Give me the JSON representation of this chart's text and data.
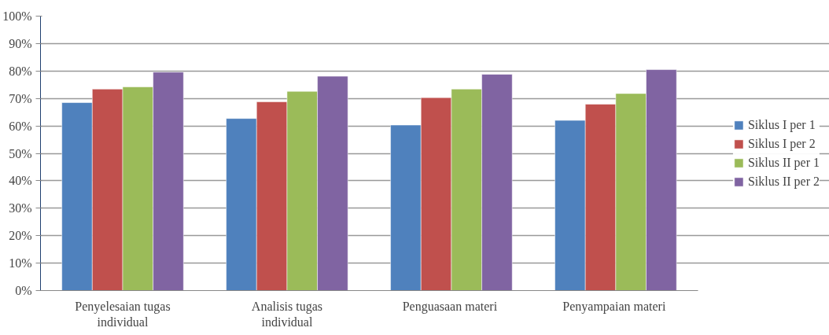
{
  "chart_data": {
    "type": "bar",
    "categories": [
      "Penyelesaian tugas individual",
      "Analisis tugas individual",
      "Penguasaan  materi",
      "Penyampaian  materi"
    ],
    "series": [
      {
        "name": "Siklus I per 1",
        "color": "#4f81bd",
        "values": [
          68.5,
          62.7,
          60.3,
          62
        ]
      },
      {
        "name": "Siklus I per 2",
        "color": "#c0504d",
        "values": [
          73.4,
          68.8,
          70.3,
          67.9
        ]
      },
      {
        "name": "Siklus II per 1",
        "color": "#9bbb59",
        "values": [
          74.2,
          72.6,
          73.4,
          71.8
        ]
      },
      {
        "name": "Siklus II per 2",
        "color": "#8064a2",
        "values": [
          79.6,
          78.1,
          78.8,
          80.5
        ]
      }
    ],
    "ylim": [
      0,
      100
    ],
    "yticks": [
      {
        "value": 0,
        "label": "0%"
      },
      {
        "value": 10,
        "label": "10%"
      },
      {
        "value": 20,
        "label": "20%"
      },
      {
        "value": 30,
        "label": "30%"
      },
      {
        "value": 40,
        "label": "40%"
      },
      {
        "value": 50,
        "label": "50%"
      },
      {
        "value": 60,
        "label": "60%"
      },
      {
        "value": 70,
        "label": "70%"
      },
      {
        "value": 80,
        "label": "80%"
      },
      {
        "value": 90,
        "label": "90%"
      },
      {
        "value": 100,
        "label": "100%"
      }
    ],
    "grid": "y",
    "legend": "right"
  }
}
